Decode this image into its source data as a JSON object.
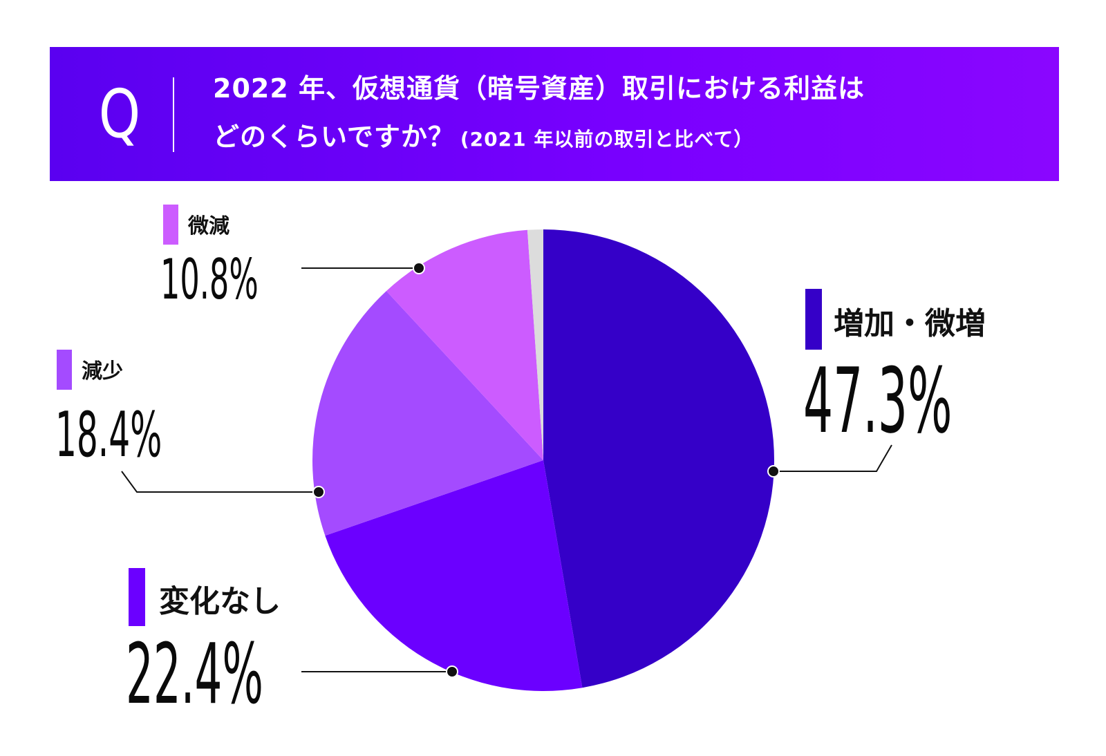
{
  "question": {
    "mark": "Q",
    "line1": "2022 年、仮想通貨（暗号資産）取引における利益は",
    "line2": "どのくらいですか？",
    "note": "(2021 年以前の取引と比べて）"
  },
  "colors": {
    "banner": "#6a00ff",
    "increase": "#3500c8",
    "nochange": "#6b00ff",
    "decrease": "#a44bff",
    "slight_decrease": "#cc5cff",
    "other": "#dcdcdc"
  },
  "chart_data": {
    "type": "pie",
    "start": "12 o'clock",
    "direction": "clockwise",
    "slices": [
      {
        "label": "増加・微増",
        "value": 47.3,
        "display": "47.3%",
        "color": "#3500c8"
      },
      {
        "label": "変化なし",
        "value": 22.4,
        "display": "22.4%",
        "color": "#6b00ff"
      },
      {
        "label": "減少",
        "value": 18.4,
        "display": "18.4%",
        "color": "#a44bff"
      },
      {
        "label": "微減",
        "value": 10.8,
        "display": "10.8%",
        "color": "#cc5cff"
      },
      {
        "label": "",
        "value": 1.1,
        "display": "",
        "color": "#dcdcdc"
      }
    ]
  }
}
